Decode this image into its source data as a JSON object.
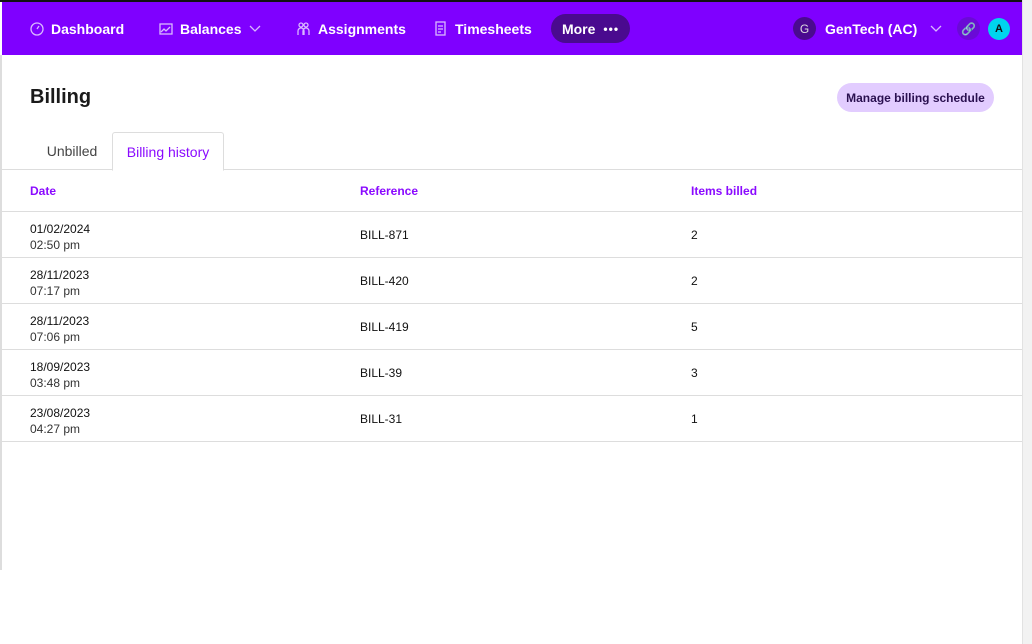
{
  "nav": {
    "items": [
      {
        "label": "Dashboard",
        "icon": "gauge-icon"
      },
      {
        "label": "Balances",
        "icon": "chart-icon"
      },
      {
        "label": "Assignments",
        "icon": "people-icon"
      },
      {
        "label": "Timesheets",
        "icon": "document-icon"
      }
    ],
    "more": "More",
    "org_initial": "G",
    "org_name": "GenTech (AC)",
    "avatar_initial": "A",
    "brand_color": "#7f00ff"
  },
  "page": {
    "title": "Billing",
    "manage_button": "Manage billing schedule"
  },
  "tabs": [
    {
      "label": "Unbilled"
    },
    {
      "label": "Billing history",
      "active": true
    }
  ],
  "table": {
    "headers": [
      "Date",
      "Reference",
      "Items billed"
    ],
    "rows": [
      {
        "date": "01/02/2024",
        "time": "02:50 pm",
        "reference": "BILL-871",
        "items": "2"
      },
      {
        "date": "28/11/2023",
        "time": "07:17 pm",
        "reference": "BILL-420",
        "items": "2"
      },
      {
        "date": "28/11/2023",
        "time": "07:06 pm",
        "reference": "BILL-419",
        "items": "5"
      },
      {
        "date": "18/09/2023",
        "time": "03:48 pm",
        "reference": "BILL-39",
        "items": "3"
      },
      {
        "date": "23/08/2023",
        "time": "04:27 pm",
        "reference": "BILL-31",
        "items": "1"
      }
    ]
  }
}
